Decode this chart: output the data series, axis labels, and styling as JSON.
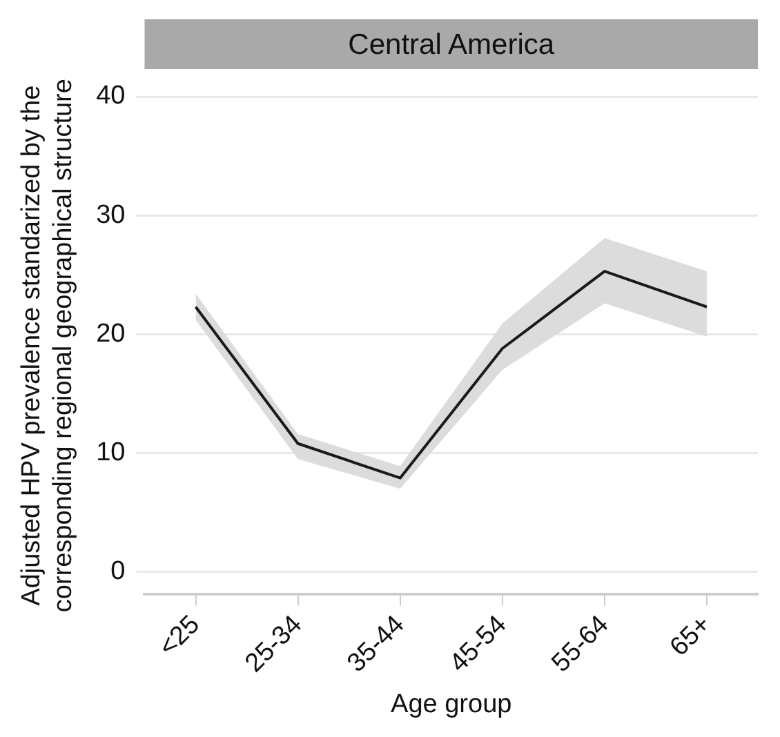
{
  "chart_data": {
    "type": "line",
    "title": "Central America",
    "xlabel": "Age group",
    "ylabel": "Adjusted HPV prevalence standarized by the corresponding regional geographical structure",
    "categories": [
      "<25",
      "25-34",
      "35-44",
      "45-54",
      "55-64",
      "65+"
    ],
    "series": [
      {
        "type": "line",
        "color": "#1a1a1a",
        "values": [
          22.3,
          10.8,
          7.9,
          18.8,
          25.3,
          22.3
        ],
        "lower": [
          21.2,
          9.5,
          7.0,
          17.0,
          22.6,
          19.8
        ],
        "upper": [
          23.4,
          11.6,
          8.9,
          20.9,
          28.1,
          25.3
        ]
      }
    ],
    "ylim": [
      -1.9,
      40
    ],
    "yticks": [
      0,
      10,
      20,
      30,
      40
    ],
    "grid": "y",
    "legend": false,
    "marker": "none",
    "line_style": "solid"
  }
}
